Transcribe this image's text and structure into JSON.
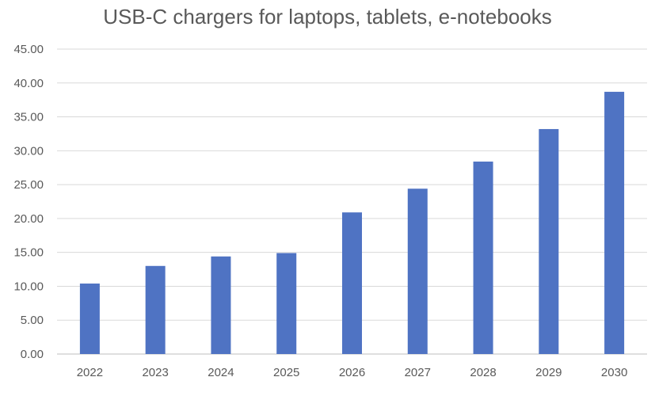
{
  "chart_data": {
    "type": "bar",
    "title": "USB-C chargers for laptops, tablets, e-notebooks",
    "categories": [
      "2022",
      "2023",
      "2024",
      "2025",
      "2026",
      "2027",
      "2028",
      "2029",
      "2030"
    ],
    "values": [
      10.4,
      13.0,
      14.4,
      14.9,
      20.9,
      24.4,
      28.4,
      33.2,
      38.7
    ],
    "ylim": [
      0,
      45
    ],
    "yticks": [
      "0.00",
      "5.00",
      "10.00",
      "15.00",
      "20.00",
      "25.00",
      "30.00",
      "35.00",
      "40.00",
      "45.00"
    ],
    "ytick_values": [
      0,
      5,
      10,
      15,
      20,
      25,
      30,
      35,
      40,
      45
    ],
    "xlabel": "",
    "ylabel": "",
    "grid": true,
    "legend": "none",
    "bar_color": "#4f73c3"
  }
}
